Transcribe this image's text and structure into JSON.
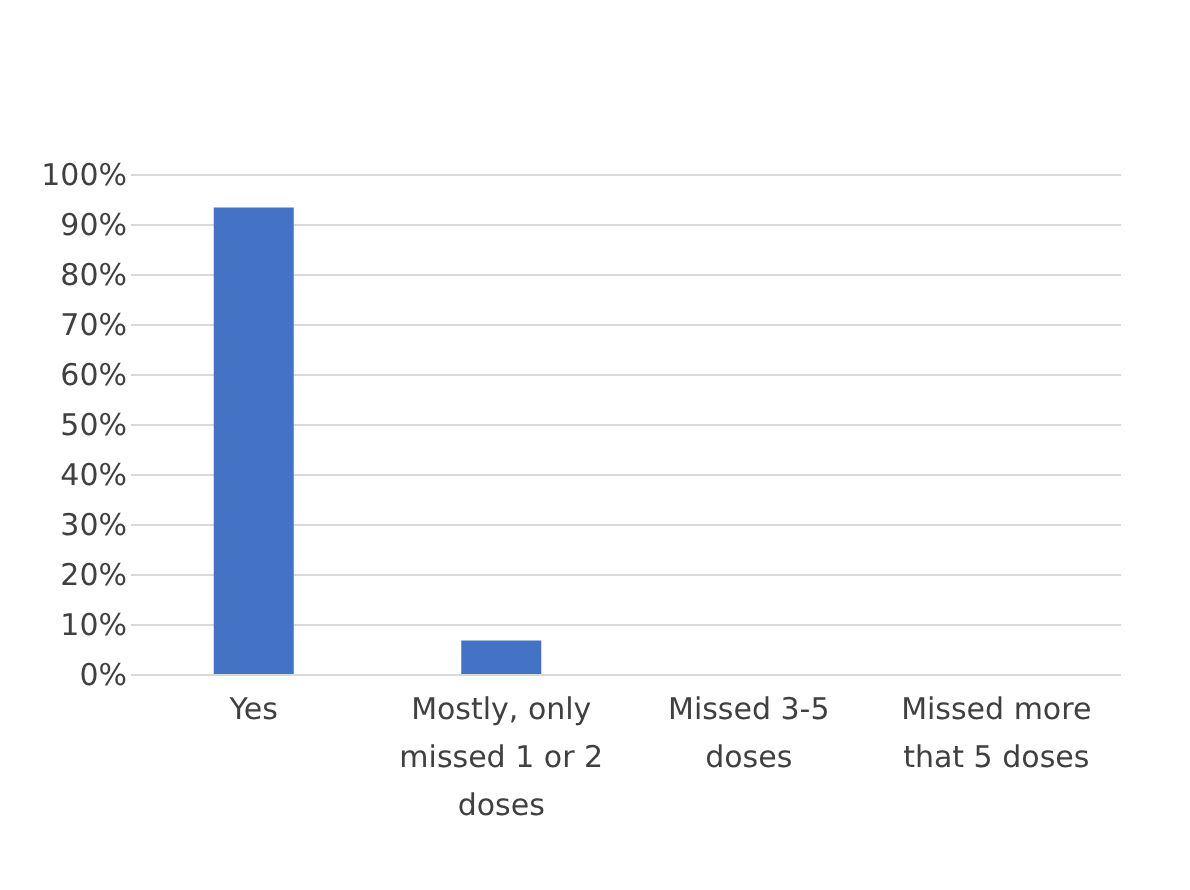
{
  "chart_data": {
    "type": "bar",
    "categories": [
      "Yes",
      "Mostly, only missed 1 or 2 doses",
      "Missed 3-5 doses",
      "Missed more that 5 doses"
    ],
    "values": [
      93.3,
      6.7,
      0,
      0
    ],
    "color": "#4472c4",
    "ylim": [
      0,
      100
    ],
    "yticks": [
      {
        "value": 0,
        "label": "0%"
      },
      {
        "value": 10,
        "label": "10%"
      },
      {
        "value": 20,
        "label": "20%"
      },
      {
        "value": 30,
        "label": "30%"
      },
      {
        "value": 40,
        "label": "40%"
      },
      {
        "value": 50,
        "label": "50%"
      },
      {
        "value": 60,
        "label": "60%"
      },
      {
        "value": 70,
        "label": "70%"
      },
      {
        "value": 80,
        "label": "80%"
      },
      {
        "value": 90,
        "label": "90%"
      },
      {
        "value": 100,
        "label": "100%"
      }
    ],
    "grid": "y"
  }
}
